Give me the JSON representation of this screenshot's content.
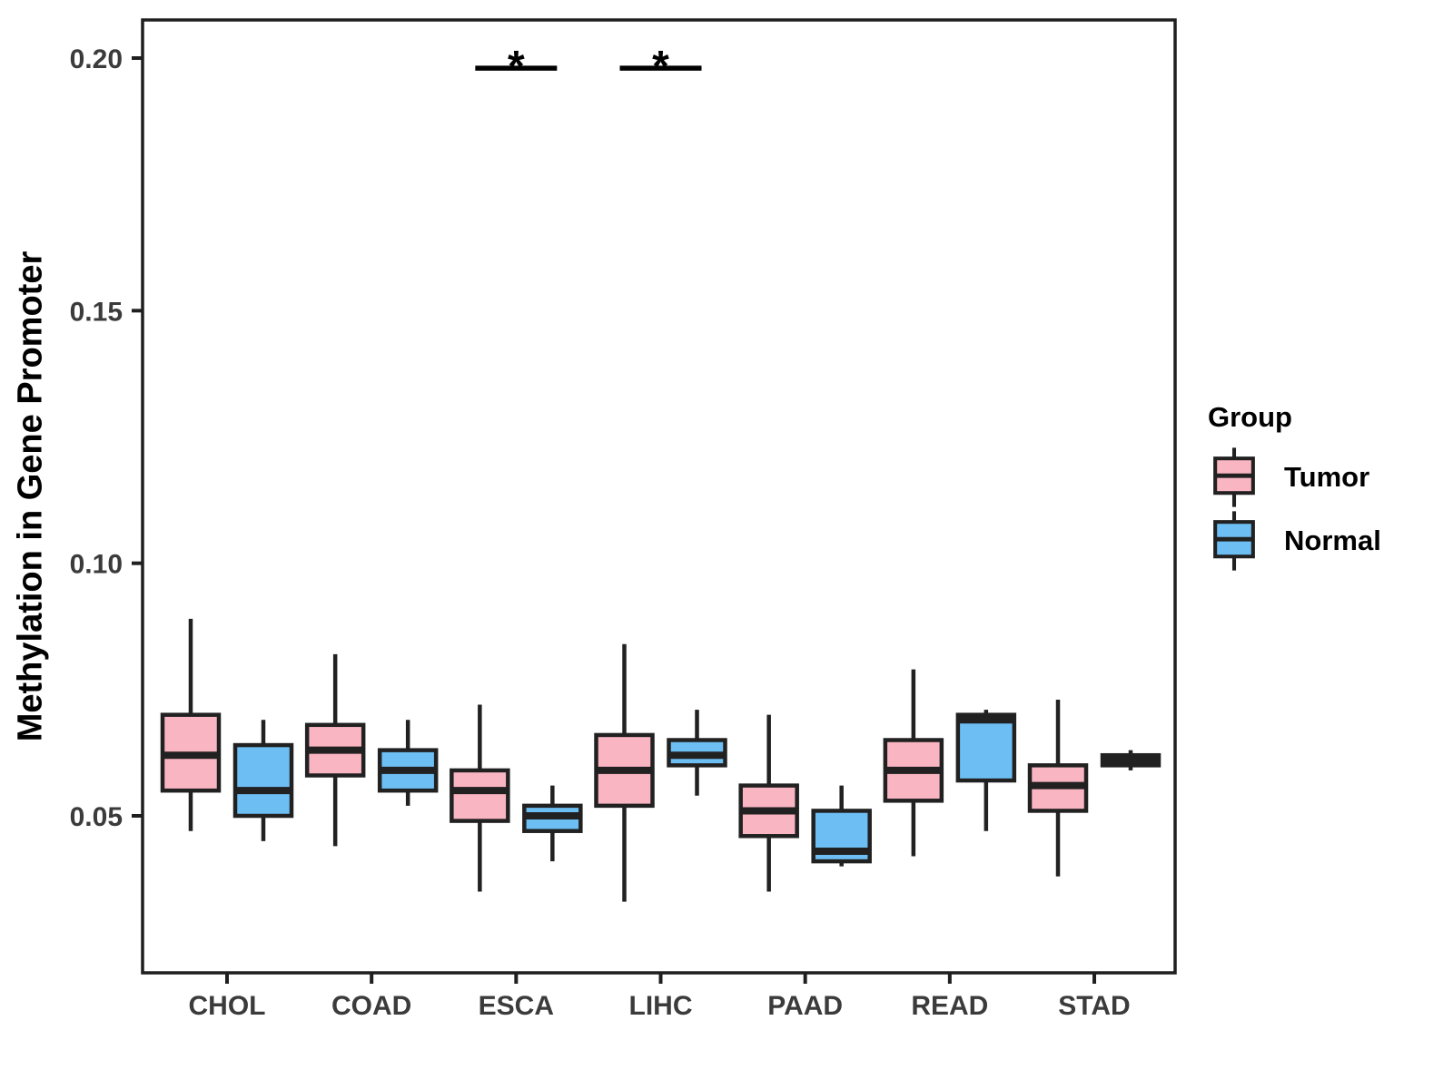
{
  "page": {
    "background": "#FFFFFF"
  },
  "chart_data": {
    "type": "boxplot",
    "title": "",
    "xlabel": "",
    "ylabel": "Methylation in Gene Promoter",
    "categories": [
      "CHOL",
      "COAD",
      "ESCA",
      "LIHC",
      "PAAD",
      "READ",
      "STAD"
    ],
    "groups": [
      {
        "name": "Tumor",
        "color": "#FAB5C2"
      },
      {
        "name": "Normal",
        "color": "#6DBEF3"
      }
    ],
    "legend": {
      "title": "Group",
      "position": "right"
    },
    "y_axis": {
      "ticks": [
        0.05,
        0.1,
        0.15,
        0.2
      ],
      "tick_labels": [
        "0.05",
        "0.10",
        "0.15",
        "0.20"
      ],
      "range": [
        0.019,
        0.2075
      ],
      "grid": false
    },
    "series": [
      {
        "name": "Tumor",
        "boxes": [
          {
            "category": "CHOL",
            "whisker_low": 0.047,
            "q1": 0.055,
            "median": 0.062,
            "q3": 0.07,
            "whisker_high": 0.089
          },
          {
            "category": "COAD",
            "whisker_low": 0.044,
            "q1": 0.058,
            "median": 0.063,
            "q3": 0.068,
            "whisker_high": 0.082
          },
          {
            "category": "ESCA",
            "whisker_low": 0.035,
            "q1": 0.049,
            "median": 0.055,
            "q3": 0.059,
            "whisker_high": 0.072
          },
          {
            "category": "LIHC",
            "whisker_low": 0.033,
            "q1": 0.052,
            "median": 0.059,
            "q3": 0.066,
            "whisker_high": 0.084
          },
          {
            "category": "PAAD",
            "whisker_low": 0.035,
            "q1": 0.046,
            "median": 0.051,
            "q3": 0.056,
            "whisker_high": 0.07
          },
          {
            "category": "READ",
            "whisker_low": 0.042,
            "q1": 0.053,
            "median": 0.059,
            "q3": 0.065,
            "whisker_high": 0.079
          },
          {
            "category": "STAD",
            "whisker_low": 0.038,
            "q1": 0.051,
            "median": 0.056,
            "q3": 0.06,
            "whisker_high": 0.073
          }
        ]
      },
      {
        "name": "Normal",
        "boxes": [
          {
            "category": "CHOL",
            "whisker_low": 0.045,
            "q1": 0.05,
            "median": 0.055,
            "q3": 0.064,
            "whisker_high": 0.069
          },
          {
            "category": "COAD",
            "whisker_low": 0.052,
            "q1": 0.055,
            "median": 0.059,
            "q3": 0.063,
            "whisker_high": 0.069
          },
          {
            "category": "ESCA",
            "whisker_low": 0.041,
            "q1": 0.047,
            "median": 0.05,
            "q3": 0.052,
            "whisker_high": 0.056
          },
          {
            "category": "LIHC",
            "whisker_low": 0.054,
            "q1": 0.06,
            "median": 0.062,
            "q3": 0.065,
            "whisker_high": 0.071
          },
          {
            "category": "PAAD",
            "whisker_low": 0.04,
            "q1": 0.041,
            "median": 0.043,
            "q3": 0.051,
            "whisker_high": 0.056
          },
          {
            "category": "READ",
            "whisker_low": 0.047,
            "q1": 0.057,
            "median": 0.069,
            "q3": 0.07,
            "whisker_high": 0.071
          },
          {
            "category": "STAD",
            "whisker_low": 0.059,
            "q1": 0.06,
            "median": 0.061,
            "q3": 0.062,
            "whisker_high": 0.063
          }
        ]
      }
    ],
    "annotations": [
      {
        "type": "significance",
        "category": "ESCA",
        "label": "*",
        "y": 0.198
      },
      {
        "type": "significance",
        "category": "LIHC",
        "label": "*",
        "y": 0.198
      }
    ],
    "style": {
      "box_border": "#212121",
      "axis_color": "#1F1F1F",
      "tick_text_color": "#3B3B3B",
      "title_text_color": "#000000"
    }
  }
}
